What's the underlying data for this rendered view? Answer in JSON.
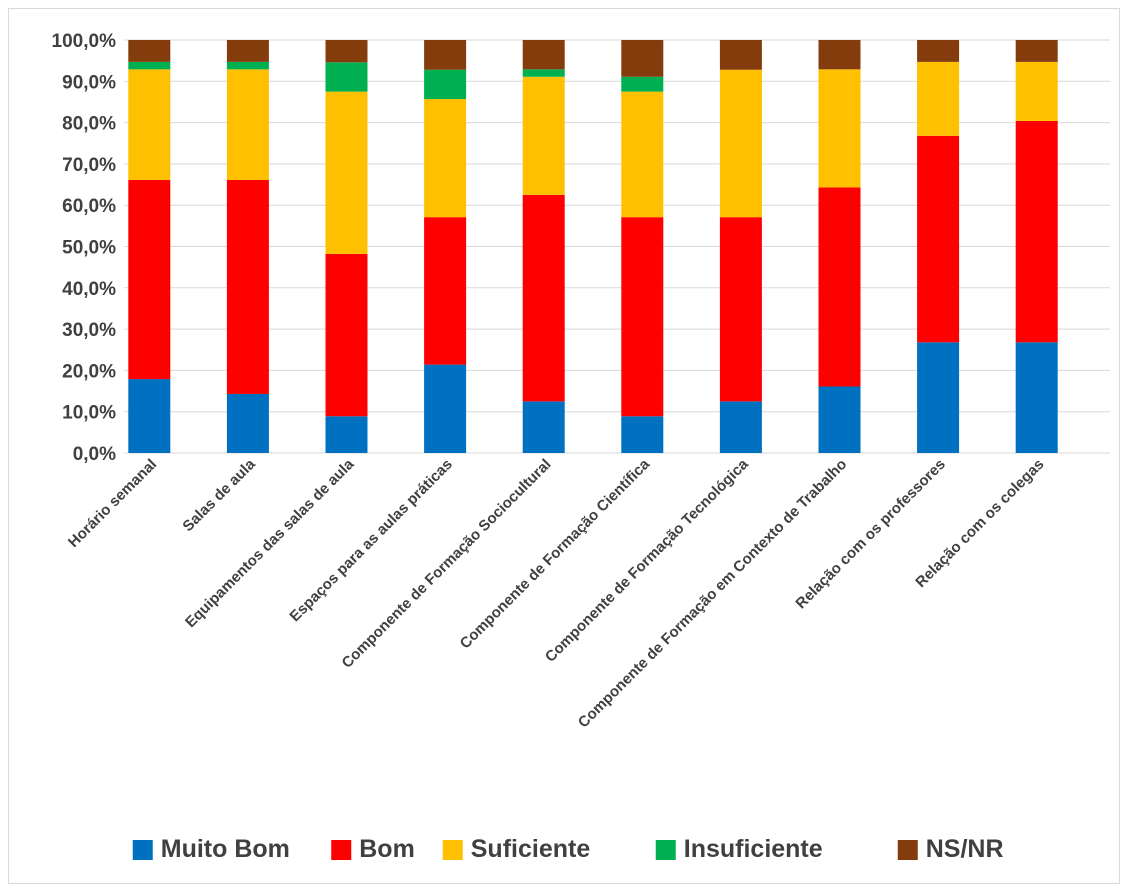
{
  "chart_data": {
    "type": "bar",
    "stacked": true,
    "title": "",
    "xlabel": "",
    "ylabel": "",
    "ylim": [
      0,
      100
    ],
    "ytick_labels": [
      "0,0%",
      "10,0%",
      "20,0%",
      "30,0%",
      "40,0%",
      "50,0%",
      "60,0%",
      "70,0%",
      "80,0%",
      "90,0%",
      "100,0%"
    ],
    "grid": true,
    "legend_position": "bottom",
    "categories": [
      "Horário semanal",
      "Salas de aula",
      "Equipamentos das salas de aula",
      "Espaços para as aulas práticas",
      "Componente de Formação Sociocultural",
      "Componente de Formação Científica",
      "Componente de Formação Tecnológica",
      "Componente de Formação em Contexto de Trabalho",
      "Relação com os professores",
      "Relação com os colegas"
    ],
    "series": [
      {
        "name": "Muito Bom",
        "color": "#0070C0",
        "values": [
          17.9,
          14.3,
          8.9,
          21.4,
          12.5,
          8.9,
          12.5,
          16.1,
          26.8,
          26.8
        ]
      },
      {
        "name": "Bom",
        "color": "#FF0000",
        "values": [
          48.2,
          51.8,
          39.3,
          35.7,
          50.0,
          48.2,
          44.6,
          48.2,
          50.0,
          53.6
        ]
      },
      {
        "name": "Suficiente",
        "color": "#FFC000",
        "values": [
          26.8,
          26.8,
          39.3,
          28.6,
          28.6,
          30.4,
          35.7,
          28.6,
          17.9,
          14.3
        ]
      },
      {
        "name": "Insuficiente",
        "color": "#00B050",
        "values": [
          1.8,
          1.8,
          7.1,
          7.1,
          1.8,
          3.6,
          0.0,
          0.0,
          0.0,
          0.0
        ]
      },
      {
        "name": "NS/NR",
        "color": "#843C0C",
        "values": [
          5.3,
          5.3,
          5.4,
          7.2,
          7.1,
          8.9,
          7.2,
          7.1,
          5.3,
          5.3
        ]
      }
    ]
  }
}
